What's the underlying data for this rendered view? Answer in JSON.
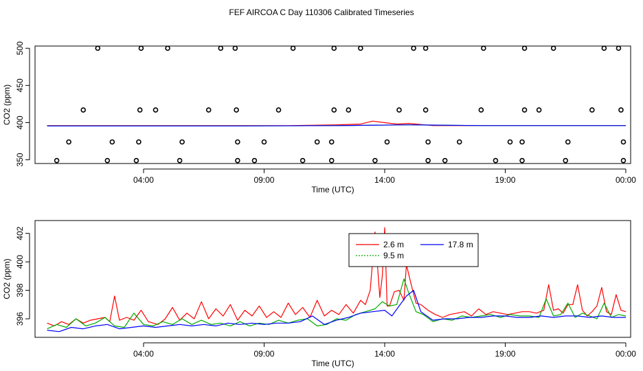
{
  "title": "FEF AIRCOA C  Day 110306  Calibrated Timeseries",
  "chart_data": [
    {
      "type": "scatter+line",
      "xlabel": "Time (UTC)",
      "ylabel": "CO2 (ppm)",
      "xlim": [
        -0.5,
        24.2
      ],
      "ylim": [
        345,
        503
      ],
      "x_ticks": [
        {
          "v": 4,
          "label": "04:00"
        },
        {
          "v": 9,
          "label": "09:00"
        },
        {
          "v": 14,
          "label": "14:00"
        },
        {
          "v": 19,
          "label": "19:00"
        },
        {
          "v": 24,
          "label": "00:00"
        }
      ],
      "y_ticks": [
        {
          "v": 350,
          "label": "350"
        },
        {
          "v": 400,
          "label": "400"
        },
        {
          "v": 450,
          "label": "450"
        },
        {
          "v": 500,
          "label": "500"
        }
      ],
      "series_lines": [
        {
          "name": "2.6 m",
          "color": "#ff0000",
          "x": [
            0.0,
            2.0,
            4.0,
            6.0,
            8.0,
            10.0,
            12.0,
            13.0,
            13.5,
            14.0,
            14.5,
            15.0,
            16.0,
            18.0,
            20.0,
            22.0,
            24.0
          ],
          "y": [
            396,
            396,
            396,
            396,
            396,
            396,
            397,
            398,
            402,
            400,
            398,
            399,
            396,
            396,
            396,
            396,
            396
          ]
        },
        {
          "name": "9.5 m",
          "color": "#00aa00",
          "x": [
            0.0,
            4.0,
            8.0,
            12.0,
            15.0,
            18.0,
            24.0
          ],
          "y": [
            395.5,
            395.5,
            395.5,
            396,
            397,
            396,
            396
          ]
        },
        {
          "name": "17.8 m",
          "color": "#0000ff",
          "x": [
            0.0,
            4.0,
            8.0,
            12.0,
            15.0,
            18.0,
            24.0
          ],
          "y": [
            395.5,
            395.5,
            395.5,
            396,
            397,
            396,
            396
          ]
        }
      ],
      "points": [
        {
          "x": 2.1,
          "y": 500
        },
        {
          "x": 3.9,
          "y": 500
        },
        {
          "x": 5.0,
          "y": 500
        },
        {
          "x": 7.2,
          "y": 500
        },
        {
          "x": 7.8,
          "y": 500
        },
        {
          "x": 10.2,
          "y": 500
        },
        {
          "x": 11.9,
          "y": 500
        },
        {
          "x": 13.0,
          "y": 500
        },
        {
          "x": 15.2,
          "y": 500
        },
        {
          "x": 15.7,
          "y": 500
        },
        {
          "x": 18.1,
          "y": 500
        },
        {
          "x": 19.8,
          "y": 500
        },
        {
          "x": 21.0,
          "y": 500
        },
        {
          "x": 23.1,
          "y": 500
        },
        {
          "x": 23.7,
          "y": 500
        },
        {
          "x": 1.5,
          "y": 417
        },
        {
          "x": 3.85,
          "y": 417
        },
        {
          "x": 4.5,
          "y": 417
        },
        {
          "x": 6.7,
          "y": 417
        },
        {
          "x": 7.85,
          "y": 417
        },
        {
          "x": 9.6,
          "y": 417
        },
        {
          "x": 11.9,
          "y": 417
        },
        {
          "x": 12.5,
          "y": 417
        },
        {
          "x": 14.6,
          "y": 417
        },
        {
          "x": 15.7,
          "y": 417
        },
        {
          "x": 18.0,
          "y": 417
        },
        {
          "x": 19.8,
          "y": 417
        },
        {
          "x": 20.4,
          "y": 417
        },
        {
          "x": 22.6,
          "y": 417
        },
        {
          "x": 23.8,
          "y": 417
        },
        {
          "x": 0.9,
          "y": 374
        },
        {
          "x": 2.7,
          "y": 374
        },
        {
          "x": 3.8,
          "y": 374
        },
        {
          "x": 5.6,
          "y": 374
        },
        {
          "x": 7.9,
          "y": 374
        },
        {
          "x": 9.0,
          "y": 374
        },
        {
          "x": 11.2,
          "y": 374
        },
        {
          "x": 11.8,
          "y": 374
        },
        {
          "x": 14.1,
          "y": 374
        },
        {
          "x": 15.8,
          "y": 374
        },
        {
          "x": 17.1,
          "y": 374
        },
        {
          "x": 19.2,
          "y": 374
        },
        {
          "x": 19.7,
          "y": 374
        },
        {
          "x": 21.6,
          "y": 374
        },
        {
          "x": 23.9,
          "y": 374
        },
        {
          "x": 0.4,
          "y": 349
        },
        {
          "x": 2.5,
          "y": 349
        },
        {
          "x": 3.7,
          "y": 349
        },
        {
          "x": 5.5,
          "y": 349
        },
        {
          "x": 7.9,
          "y": 349
        },
        {
          "x": 8.6,
          "y": 349
        },
        {
          "x": 10.6,
          "y": 349
        },
        {
          "x": 11.8,
          "y": 349
        },
        {
          "x": 13.6,
          "y": 349
        },
        {
          "x": 15.8,
          "y": 349
        },
        {
          "x": 16.5,
          "y": 349
        },
        {
          "x": 18.6,
          "y": 349
        },
        {
          "x": 19.7,
          "y": 349
        },
        {
          "x": 21.5,
          "y": 349
        },
        {
          "x": 23.9,
          "y": 349
        }
      ]
    },
    {
      "type": "line",
      "xlabel": "Time (UTC)",
      "ylabel": "CO2 (ppm)",
      "xlim": [
        -0.5,
        24.2
      ],
      "ylim": [
        394.7,
        402.9
      ],
      "x_ticks": [
        {
          "v": 4,
          "label": "04:00"
        },
        {
          "v": 9,
          "label": "09:00"
        },
        {
          "v": 14,
          "label": "14:00"
        },
        {
          "v": 19,
          "label": "19:00"
        },
        {
          "v": 24,
          "label": "00:00"
        }
      ],
      "y_ticks": [
        {
          "v": 396,
          "label": "396"
        },
        {
          "v": 398,
          "label": "398"
        },
        {
          "v": 400,
          "label": "400"
        },
        {
          "v": 402,
          "label": "402"
        }
      ],
      "legend": {
        "position": "top-center",
        "entries": [
          {
            "label": "2.6 m",
            "color": "#ff0000"
          },
          {
            "label": "9.5 m",
            "color": "#00aa00"
          },
          {
            "label": "17.8 m",
            "color": "#0000ff"
          }
        ]
      },
      "series": [
        {
          "name": "2.6 m",
          "color": "#ff0000",
          "x": [
            0,
            0.3,
            0.6,
            0.9,
            1.2,
            1.5,
            1.8,
            2.1,
            2.4,
            2.6,
            2.8,
            3.0,
            3.3,
            3.6,
            3.9,
            4.2,
            4.6,
            4.9,
            5.2,
            5.5,
            5.8,
            6.1,
            6.4,
            6.7,
            7.0,
            7.3,
            7.6,
            7.9,
            8.2,
            8.5,
            8.8,
            9.1,
            9.4,
            9.7,
            10.0,
            10.3,
            10.6,
            10.9,
            11.2,
            11.5,
            11.8,
            12.1,
            12.4,
            12.7,
            13.0,
            13.2,
            13.4,
            13.6,
            13.8,
            13.9,
            14.0,
            14.1,
            14.2,
            14.4,
            14.6,
            14.8,
            14.9,
            15.1,
            15.3,
            15.5,
            15.8,
            16.1,
            16.4,
            16.7,
            17.0,
            17.3,
            17.6,
            17.9,
            18.2,
            18.5,
            18.8,
            19.1,
            19.4,
            19.7,
            20.0,
            20.3,
            20.6,
            20.8,
            21.0,
            21.2,
            21.4,
            21.6,
            21.8,
            22.0,
            22.2,
            22.4,
            22.6,
            22.8,
            23.0,
            23.2,
            23.4,
            23.6,
            23.8,
            24.0
          ],
          "y": [
            395.7,
            395.5,
            395.8,
            395.6,
            396.0,
            395.7,
            395.9,
            396.0,
            396.1,
            395.8,
            397.6,
            395.9,
            396.1,
            395.9,
            396.6,
            395.8,
            395.6,
            396.0,
            396.8,
            395.9,
            396.4,
            396.0,
            397.2,
            396.0,
            396.7,
            396.2,
            397.0,
            395.9,
            396.6,
            396.2,
            396.9,
            396.1,
            396.5,
            396.1,
            397.1,
            396.3,
            396.8,
            396.1,
            397.3,
            396.2,
            396.6,
            396.3,
            397.0,
            396.4,
            397.3,
            397.0,
            398.0,
            402.1,
            397.5,
            399.0,
            402.4,
            396.9,
            396.9,
            397.9,
            398.0,
            397.3,
            399.8,
            398.4,
            397.1,
            397.0,
            396.6,
            396.3,
            396.1,
            396.3,
            396.4,
            396.5,
            396.2,
            396.7,
            396.3,
            396.5,
            396.4,
            396.3,
            396.4,
            396.5,
            396.5,
            396.4,
            396.6,
            398.4,
            396.6,
            396.7,
            396.4,
            397.0,
            397.0,
            398.4,
            396.6,
            396.2,
            396.5,
            396.9,
            398.2,
            396.5,
            396.3,
            397.7,
            396.6,
            396.5
          ]
        },
        {
          "name": "9.5 m",
          "color": "#00aa00",
          "x": [
            0,
            0.4,
            0.8,
            1.2,
            1.6,
            2.0,
            2.4,
            2.8,
            3.2,
            3.6,
            4.0,
            4.4,
            4.8,
            5.2,
            5.6,
            6.0,
            6.4,
            6.8,
            7.2,
            7.6,
            8.0,
            8.4,
            8.8,
            9.2,
            9.6,
            10.0,
            10.4,
            10.8,
            11.2,
            11.6,
            12.0,
            12.4,
            12.8,
            13.2,
            13.6,
            13.9,
            14.2,
            14.5,
            14.8,
            15.0,
            15.3,
            15.6,
            16.0,
            16.4,
            16.8,
            17.2,
            17.6,
            18.0,
            18.4,
            18.8,
            19.2,
            19.6,
            20.0,
            20.4,
            20.7,
            21.0,
            21.3,
            21.6,
            21.9,
            22.2,
            22.5,
            22.8,
            23.1,
            23.4,
            23.7,
            24.0
          ],
          "y": [
            395.3,
            395.6,
            395.4,
            396.0,
            395.5,
            395.7,
            396.1,
            395.5,
            395.4,
            396.4,
            395.6,
            395.5,
            395.8,
            395.6,
            396.0,
            395.6,
            395.9,
            395.6,
            395.7,
            395.5,
            395.8,
            395.5,
            395.7,
            395.6,
            395.9,
            395.7,
            395.9,
            396.0,
            395.5,
            395.6,
            396.0,
            395.9,
            396.3,
            396.5,
            396.7,
            397.2,
            396.9,
            397.0,
            398.8,
            397.8,
            396.5,
            396.3,
            395.8,
            396.0,
            395.9,
            396.2,
            396.1,
            396.2,
            396.3,
            396.1,
            396.3,
            396.2,
            396.2,
            396.1,
            397.4,
            396.2,
            396.3,
            397.1,
            396.1,
            396.4,
            396.2,
            396.0,
            397.1,
            396.1,
            396.3,
            396.2
          ]
        },
        {
          "name": "17.8 m",
          "color": "#0000ff",
          "x": [
            0,
            0.5,
            1.0,
            1.5,
            2.0,
            2.5,
            3.0,
            3.5,
            4.0,
            4.5,
            5.0,
            5.5,
            6.0,
            6.5,
            7.0,
            7.5,
            8.0,
            8.5,
            9.0,
            9.5,
            10.0,
            10.5,
            11.0,
            11.5,
            12.0,
            12.5,
            13.0,
            13.5,
            14.0,
            14.3,
            14.6,
            14.9,
            15.2,
            15.5,
            16.0,
            16.5,
            17.0,
            17.5,
            18.0,
            18.5,
            19.0,
            19.5,
            20.0,
            20.5,
            21.0,
            21.5,
            22.0,
            22.5,
            23.0,
            23.5,
            24.0
          ],
          "y": [
            395.2,
            395.1,
            395.4,
            395.3,
            395.5,
            395.6,
            395.3,
            395.4,
            395.5,
            395.4,
            395.5,
            395.6,
            395.5,
            395.6,
            395.5,
            395.7,
            395.6,
            395.7,
            395.6,
            395.7,
            395.7,
            395.8,
            396.2,
            395.6,
            395.9,
            396.1,
            396.4,
            396.5,
            396.6,
            396.2,
            396.9,
            397.6,
            398.0,
            396.5,
            395.9,
            396.0,
            396.0,
            396.1,
            396.1,
            396.2,
            396.2,
            396.1,
            396.1,
            396.2,
            396.1,
            396.2,
            396.2,
            396.1,
            396.2,
            396.1,
            396.1
          ]
        }
      ]
    }
  ]
}
